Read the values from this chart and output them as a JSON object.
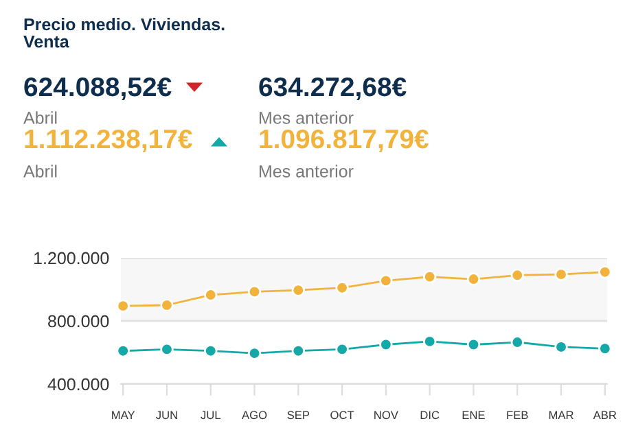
{
  "chart_data": {
    "type": "line",
    "title": "Precio medio. Viviendas.\nVenta",
    "annotations": [
      "624.088,52€",
      "Abril",
      "634.272,68€",
      "Mes anterior",
      "1.112.238,17€",
      "Abril",
      "1.096.817,79€",
      "Mes anterior"
    ],
    "categories": [
      "MAY",
      "JUN",
      "JUL",
      "AGO",
      "SEP",
      "OCT",
      "NOV",
      "DIC",
      "ENE",
      "FEB",
      "MAR",
      "ABR"
    ],
    "series": [
      {
        "color": "#f2b33d",
        "values": [
          895000,
          900000,
          965000,
          985000,
          995000,
          1010000,
          1055000,
          1080000,
          1065000,
          1090000,
          1095000,
          1110000
        ]
      },
      {
        "color": "#14a8a8",
        "values": [
          610000,
          620000,
          610000,
          595000,
          610000,
          620000,
          650000,
          670000,
          650000,
          665000,
          635000,
          625000
        ]
      }
    ],
    "ylim": [
      400000,
      1200000
    ],
    "yticks": [
      {
        "value": 400000,
        "label": "400.000"
      },
      {
        "value": 800000,
        "label": "800.000"
      },
      {
        "value": 1200000,
        "label": "1.200.000"
      }
    ],
    "bands": [
      {
        "axis": "y",
        "from": 800000,
        "to": 1200000,
        "color": "#f7f7f7"
      }
    ],
    "grid": "y",
    "marker": "circle",
    "line_style": "solid"
  }
}
